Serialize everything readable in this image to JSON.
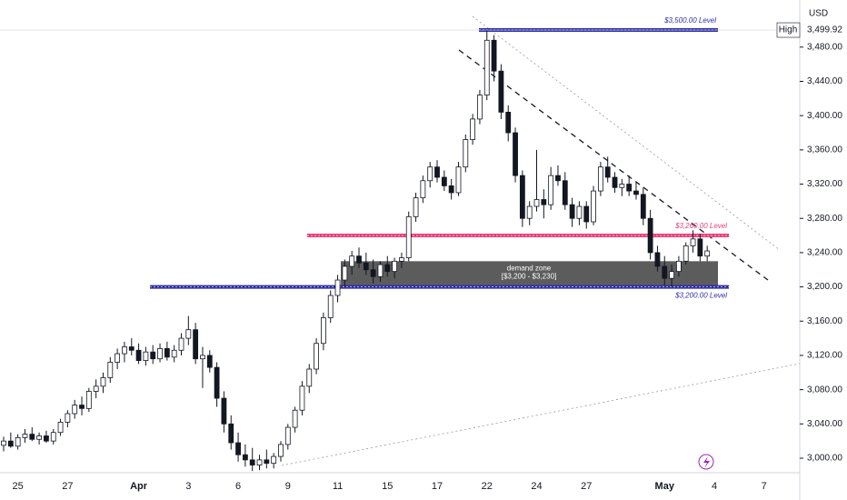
{
  "chart_data": {
    "type": "candlestick",
    "currency": "USD",
    "ylim": [
      2983,
      3535
    ],
    "yticks": [
      {
        "value": 3000,
        "label": "3,000.00"
      },
      {
        "value": 3040,
        "label": "3,040.00"
      },
      {
        "value": 3080,
        "label": "3,080.00"
      },
      {
        "value": 3120,
        "label": "3,120.00"
      },
      {
        "value": 3160,
        "label": "3,160.00"
      },
      {
        "value": 3200,
        "label": "3,200.00"
      },
      {
        "value": 3240,
        "label": "3,240.00"
      },
      {
        "value": 3280,
        "label": "3,280.00"
      },
      {
        "value": 3320,
        "label": "3,320.00"
      },
      {
        "value": 3360,
        "label": "3,360.00"
      },
      {
        "value": 3400,
        "label": "3,400.00"
      },
      {
        "value": 3440,
        "label": "3,440.00"
      },
      {
        "value": 3480,
        "label": "3,480.00"
      }
    ],
    "categories": [
      null,
      null,
      "25",
      null,
      null,
      null,
      null,
      null,
      null,
      "27",
      null,
      null,
      null,
      null,
      null,
      null,
      null,
      null,
      null,
      "Apr",
      null,
      null,
      null,
      null,
      null,
      null,
      "3",
      null,
      null,
      null,
      null,
      null,
      null,
      "6",
      null,
      null,
      null,
      null,
      null,
      null,
      "9",
      null,
      null,
      null,
      null,
      null,
      null,
      "11",
      null,
      null,
      null,
      null,
      null,
      null,
      "15",
      null,
      null,
      null,
      null,
      null,
      null,
      "17",
      null,
      null,
      null,
      null,
      null,
      null,
      "22",
      null,
      null,
      null,
      null,
      null,
      null,
      "24",
      null,
      null,
      null,
      null,
      null,
      null,
      "27",
      null,
      null,
      null,
      null,
      null,
      null,
      null,
      null,
      null,
      null,
      "May",
      null,
      null,
      null,
      null,
      null,
      null,
      "4",
      null,
      null,
      null,
      null,
      null,
      null,
      "7",
      null,
      null
    ],
    "up_color": "#ffffff",
    "down_color": "#131722",
    "candles": [
      [
        3015,
        3025,
        3008,
        3020
      ],
      [
        3020,
        3030,
        3012,
        3014
      ],
      [
        3014,
        3028,
        3010,
        3024
      ],
      [
        3024,
        3034,
        3018,
        3028
      ],
      [
        3028,
        3036,
        3020,
        3022
      ],
      [
        3022,
        3030,
        3016,
        3026
      ],
      [
        3026,
        3032,
        3018,
        3020
      ],
      [
        3020,
        3034,
        3016,
        3030
      ],
      [
        3030,
        3046,
        3026,
        3042
      ],
      [
        3042,
        3056,
        3036,
        3052
      ],
      [
        3052,
        3068,
        3046,
        3062
      ],
      [
        3062,
        3072,
        3050,
        3058
      ],
      [
        3058,
        3082,
        3054,
        3078
      ],
      [
        3078,
        3092,
        3070,
        3084
      ],
      [
        3084,
        3100,
        3076,
        3094
      ],
      [
        3094,
        3118,
        3088,
        3112
      ],
      [
        3112,
        3128,
        3104,
        3122
      ],
      [
        3122,
        3136,
        3112,
        3130
      ],
      [
        3130,
        3140,
        3120,
        3126
      ],
      [
        3126,
        3134,
        3110,
        3114
      ],
      [
        3114,
        3130,
        3108,
        3124
      ],
      [
        3124,
        3132,
        3110,
        3116
      ],
      [
        3116,
        3134,
        3112,
        3128
      ],
      [
        3128,
        3136,
        3114,
        3118
      ],
      [
        3118,
        3132,
        3112,
        3126
      ],
      [
        3126,
        3146,
        3120,
        3140
      ],
      [
        3140,
        3166,
        3132,
        3150
      ],
      [
        3150,
        3158,
        3110,
        3116
      ],
      [
        3116,
        3130,
        3082,
        3120
      ],
      [
        3120,
        3126,
        3100,
        3106
      ],
      [
        3106,
        3112,
        3060,
        3070
      ],
      [
        3070,
        3078,
        3030,
        3040
      ],
      [
        3040,
        3050,
        3010,
        3018
      ],
      [
        3018,
        3030,
        2996,
        3004
      ],
      [
        3004,
        3016,
        2990,
        2998
      ],
      [
        2998,
        3012,
        2985,
        2992
      ],
      [
        2992,
        3004,
        2986,
        2998
      ],
      [
        2998,
        3010,
        2988,
        2994
      ],
      [
        2994,
        3006,
        2988,
        3002
      ],
      [
        3002,
        3020,
        2996,
        3016
      ],
      [
        3016,
        3040,
        3010,
        3036
      ],
      [
        3036,
        3060,
        3030,
        3056
      ],
      [
        3056,
        3090,
        3050,
        3084
      ],
      [
        3084,
        3110,
        3076,
        3104
      ],
      [
        3104,
        3140,
        3098,
        3134
      ],
      [
        3134,
        3170,
        3126,
        3164
      ],
      [
        3164,
        3196,
        3158,
        3190
      ],
      [
        3190,
        3214,
        3182,
        3208
      ],
      [
        3208,
        3232,
        3200,
        3224
      ],
      [
        3224,
        3242,
        3214,
        3236
      ],
      [
        3236,
        3246,
        3222,
        3228
      ],
      [
        3228,
        3240,
        3214,
        3220
      ],
      [
        3220,
        3232,
        3204,
        3212
      ],
      [
        3212,
        3230,
        3206,
        3226
      ],
      [
        3226,
        3236,
        3212,
        3218
      ],
      [
        3218,
        3234,
        3210,
        3230
      ],
      [
        3230,
        3240,
        3222,
        3234
      ],
      [
        3234,
        3288,
        3230,
        3282
      ],
      [
        3282,
        3310,
        3276,
        3304
      ],
      [
        3304,
        3330,
        3298,
        3324
      ],
      [
        3324,
        3346,
        3316,
        3340
      ],
      [
        3340,
        3348,
        3322,
        3328
      ],
      [
        3328,
        3336,
        3312,
        3318
      ],
      [
        3318,
        3326,
        3302,
        3310
      ],
      [
        3310,
        3346,
        3306,
        3340
      ],
      [
        3340,
        3378,
        3334,
        3372
      ],
      [
        3372,
        3402,
        3366,
        3396
      ],
      [
        3396,
        3430,
        3390,
        3424
      ],
      [
        3424,
        3499.92,
        3418,
        3488
      ],
      [
        3488,
        3494,
        3440,
        3452
      ],
      [
        3452,
        3460,
        3396,
        3404
      ],
      [
        3404,
        3412,
        3370,
        3380
      ],
      [
        3380,
        3386,
        3322,
        3330
      ],
      [
        3330,
        3336,
        3270,
        3280
      ],
      [
        3280,
        3300,
        3272,
        3294
      ],
      [
        3294,
        3360,
        3288,
        3302
      ],
      [
        3302,
        3314,
        3280,
        3296
      ],
      [
        3296,
        3340,
        3290,
        3330
      ],
      [
        3330,
        3342,
        3318,
        3324
      ],
      [
        3324,
        3334,
        3290,
        3296
      ],
      [
        3296,
        3304,
        3270,
        3280
      ],
      [
        3280,
        3300,
        3272,
        3294
      ],
      [
        3294,
        3300,
        3268,
        3276
      ],
      [
        3276,
        3318,
        3272,
        3312
      ],
      [
        3312,
        3346,
        3306,
        3340
      ],
      [
        3340,
        3352,
        3322,
        3328
      ],
      [
        3328,
        3334,
        3310,
        3316
      ],
      [
        3316,
        3326,
        3306,
        3320
      ],
      [
        3320,
        3330,
        3306,
        3312
      ],
      [
        3312,
        3322,
        3302,
        3308
      ],
      [
        3308,
        3316,
        3272,
        3280
      ],
      [
        3280,
        3290,
        3232,
        3240
      ],
      [
        3240,
        3248,
        3218,
        3224
      ],
      [
        3224,
        3236,
        3202,
        3210
      ],
      [
        3210,
        3226,
        3200,
        3218
      ],
      [
        3218,
        3236,
        3212,
        3230
      ],
      [
        3230,
        3252,
        3226,
        3248
      ],
      [
        3248,
        3266,
        3240,
        3256
      ],
      [
        3256,
        3262,
        3230,
        3236
      ],
      [
        3236,
        3248,
        3230,
        3242
      ],
      null,
      null,
      null,
      null,
      null,
      null,
      null,
      null,
      null,
      null
    ],
    "levels": [
      {
        "value": 3500,
        "label": "$3,500.00 Level",
        "color": "#2e2ea6"
      },
      {
        "value": 3260,
        "label": "$3,260.00 Level",
        "color": "#e8417a"
      },
      {
        "value": 3200,
        "label": "$3,200.00 Level",
        "color": "#2e2ea6"
      }
    ],
    "zone": {
      "low": 3200,
      "high": 3230,
      "label": "demand zone",
      "range_label": "[$3,200 - $3,230]"
    },
    "high": {
      "label": "High",
      "value": 3499.92,
      "value_label": "3,499.92"
    }
  }
}
